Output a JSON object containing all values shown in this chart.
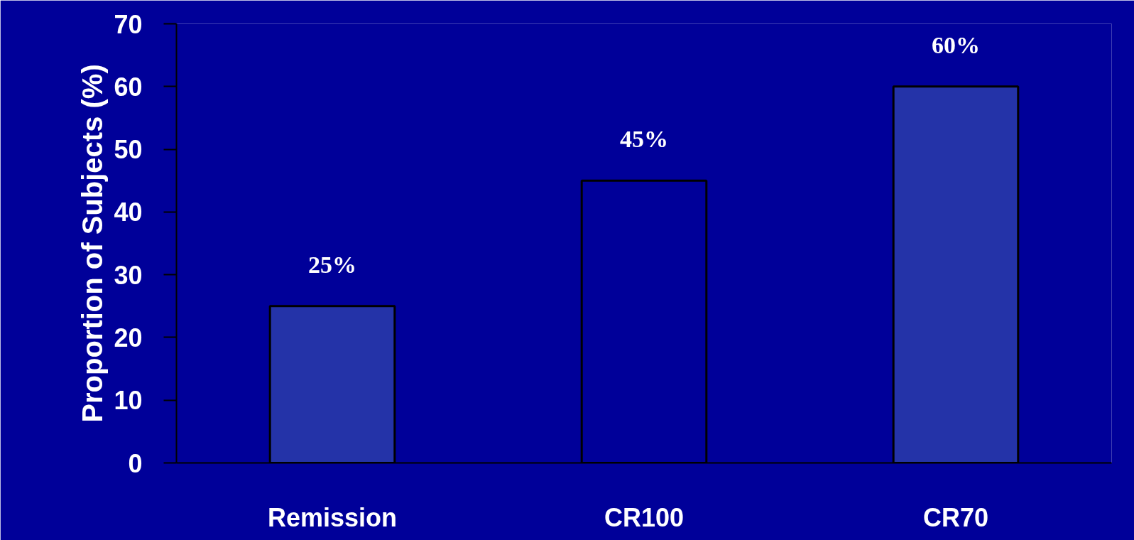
{
  "chart_data": {
    "type": "bar",
    "ylabel": "Proportion of Subjects (%)",
    "categories": [
      "Remission",
      "CR100",
      "CR70"
    ],
    "values": [
      25,
      45,
      60
    ],
    "colors": [
      "#2433a8",
      "#000099",
      "#2433a8"
    ],
    "value_labels": [
      "25%",
      "45%",
      "60%"
    ],
    "ylim": [
      0,
      70
    ],
    "yticks": [
      0,
      10,
      20,
      30,
      40,
      50,
      60,
      70
    ],
    "grid": false
  }
}
